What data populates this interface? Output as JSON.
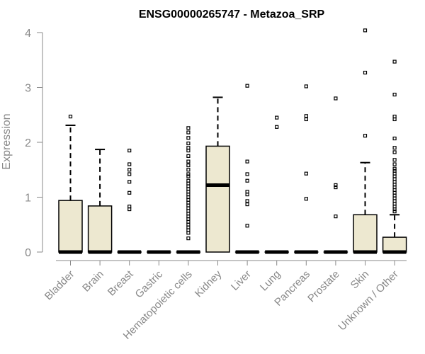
{
  "chart_data": {
    "type": "boxplot",
    "title": "ENSG00000265747 - Metazoa_SRP",
    "xlabel": "",
    "ylabel": "Expression",
    "ylim": [
      0,
      4.1
    ],
    "yticks": [
      0,
      1,
      2,
      3,
      4
    ],
    "box_color": "#EDE8D0",
    "categories": [
      "Bladder",
      "Brain",
      "Breast",
      "Gastric",
      "Hematopoietic cells",
      "Kidney",
      "Liver",
      "Lung",
      "Pancreas",
      "Prostate",
      "Skin",
      "Unknown / Other"
    ],
    "boxes": [
      {
        "name": "Bladder",
        "min": 0,
        "q1": 0,
        "median": 0,
        "q3": 0.94,
        "max": 2.31,
        "outliers": [
          2.47
        ]
      },
      {
        "name": "Brain",
        "min": 0,
        "q1": 0,
        "median": 0,
        "q3": 0.84,
        "max": 1.87,
        "outliers": []
      },
      {
        "name": "Breast",
        "min": 0,
        "q1": 0,
        "median": 0,
        "q3": 0,
        "max": 0,
        "outliers": [
          1.85,
          1.6,
          1.5,
          1.42,
          1.28,
          1.08,
          0.83,
          0.78
        ]
      },
      {
        "name": "Gastric",
        "min": 0,
        "q1": 0,
        "median": 0,
        "q3": 0,
        "max": 0,
        "outliers": []
      },
      {
        "name": "Hematopoietic cells",
        "min": 0,
        "q1": 0,
        "median": 0,
        "q3": 0,
        "max": 0,
        "outliers": [
          2.26,
          2.18,
          2.08,
          1.98,
          1.9,
          1.85,
          1.75,
          1.65,
          1.58,
          1.5,
          1.42,
          1.38,
          1.3,
          1.25,
          1.2,
          1.15,
          1.1,
          1.05,
          1.0,
          0.95,
          0.9,
          0.85,
          0.8,
          0.75,
          0.7,
          0.65,
          0.6,
          0.55,
          0.5,
          0.45,
          0.4,
          0.35,
          0.25
        ]
      },
      {
        "name": "Kidney",
        "min": 0,
        "q1": 0,
        "median": 1.22,
        "q3": 1.93,
        "max": 2.82,
        "outliers": []
      },
      {
        "name": "Liver",
        "min": 0,
        "q1": 0,
        "median": 0,
        "q3": 0,
        "max": 0,
        "outliers": [
          3.03,
          1.65,
          1.42,
          1.3,
          1.1,
          1.05,
          0.93,
          0.87,
          0.48
        ]
      },
      {
        "name": "Lung",
        "min": 0,
        "q1": 0,
        "median": 0,
        "q3": 0,
        "max": 0,
        "outliers": [
          2.45,
          2.28
        ]
      },
      {
        "name": "Pancreas",
        "min": 0,
        "q1": 0,
        "median": 0,
        "q3": 0,
        "max": 0,
        "outliers": [
          3.02,
          2.48,
          2.42,
          1.43,
          0.97
        ]
      },
      {
        "name": "Prostate",
        "min": 0,
        "q1": 0,
        "median": 0,
        "q3": 0,
        "max": 0,
        "outliers": [
          2.8,
          1.22,
          1.18,
          0.65
        ]
      },
      {
        "name": "Skin",
        "min": 0,
        "q1": 0,
        "median": 0,
        "q3": 0.68,
        "max": 1.63,
        "outliers": [
          4.04,
          3.27,
          2.12
        ]
      },
      {
        "name": "Unknown / Other",
        "min": 0,
        "q1": 0,
        "median": 0,
        "q3": 0.27,
        "max": 0.68,
        "outliers": [
          3.47,
          2.87,
          2.47,
          2.42,
          2.07,
          1.9,
          1.82,
          1.68,
          1.6,
          1.52,
          1.48,
          1.43,
          1.38,
          1.33,
          1.28,
          1.23,
          1.18,
          1.13,
          1.08,
          1.03,
          0.98,
          0.93,
          0.88,
          0.83,
          0.78,
          0.74
        ]
      }
    ]
  }
}
